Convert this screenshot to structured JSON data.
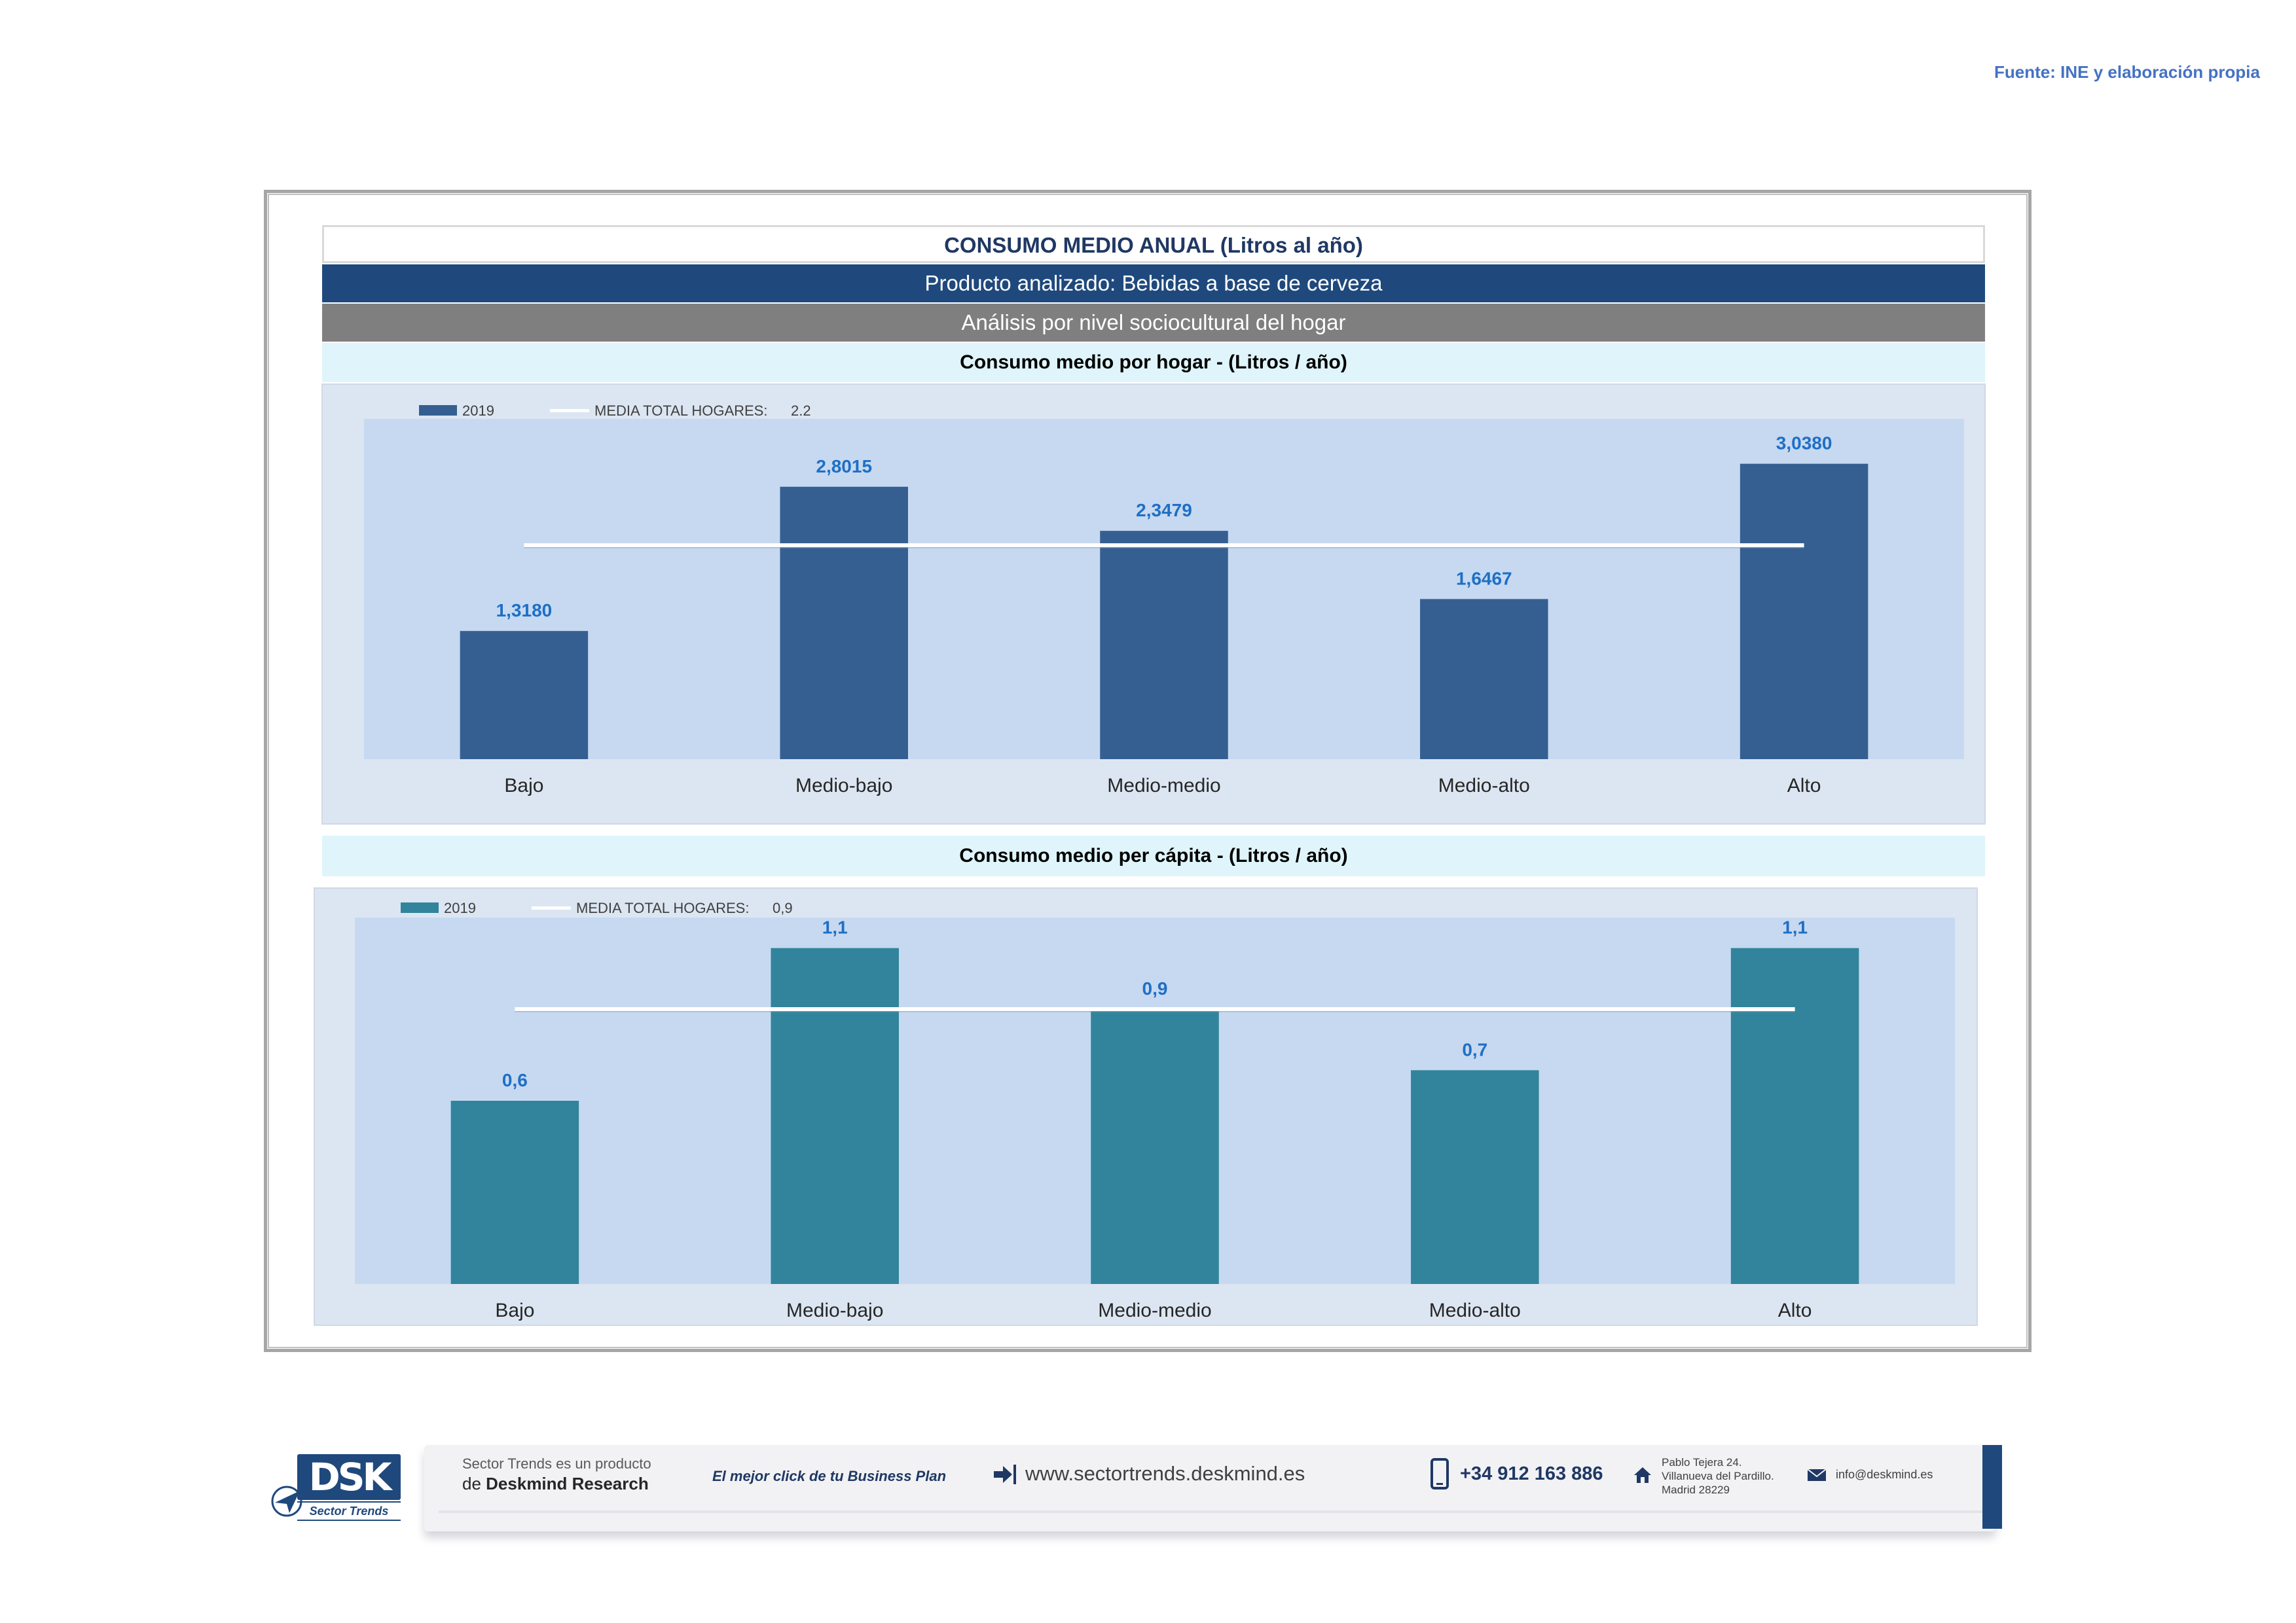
{
  "source": "Fuente: INE y elaboración propia",
  "header": {
    "title": "CONSUMO MEDIO ANUAL (Litros al año)",
    "product": "Producto analizado: Bebidas a base de cerveza",
    "analysis": "Análisis por nivel sociocultural del hogar"
  },
  "colors": {
    "bar_hogar": "#355f91",
    "bar_capita": "#31849b",
    "plot_bg": "#c6d9f1",
    "panel_bg": "#dce6f2",
    "value_label": "#1f6fc5",
    "average_line": "#ffffff"
  },
  "chart_data": [
    {
      "type": "bar",
      "title": "Consumo medio por hogar -  (Litros / año)",
      "categories": [
        "Bajo",
        "Medio-bajo",
        "Medio-medio",
        "Medio-alto",
        "Alto"
      ],
      "series": [
        {
          "name": "2019",
          "values": [
            1.318,
            2.8015,
            2.3479,
            1.6467,
            3.038
          ],
          "labels": [
            "1,3180",
            "2,8015",
            "2,3479",
            "1,6467",
            "3,0380"
          ]
        }
      ],
      "average": {
        "name": "MEDIA TOTAL  HOGARES:",
        "value": 2.2,
        "label": "2.2"
      },
      "ylim": [
        0,
        3.5
      ],
      "grid": false,
      "legend": "top-left"
    },
    {
      "type": "bar",
      "title": "Consumo medio per cápita -  (Litros / año)",
      "categories": [
        "Bajo",
        "Medio-bajo",
        "Medio-medio",
        "Medio-alto",
        "Alto"
      ],
      "series": [
        {
          "name": "2019",
          "values": [
            0.6,
            1.1,
            0.9,
            0.7,
            1.1
          ],
          "labels": [
            "0,6",
            "1,1",
            "0,9",
            "0,7",
            "1,1"
          ]
        }
      ],
      "average": {
        "name": "MEDIA TOTAL  HOGARES:",
        "value": 0.9,
        "label": "0,9"
      },
      "ylim": [
        0,
        1.2
      ],
      "grid": false,
      "legend": "top-left"
    }
  ],
  "footer": {
    "brand_logo": "DSK",
    "brand_sub": "Sector Trends",
    "product_line1": "Sector Trends es un producto",
    "product_line2_prefix": "de",
    "product_line2_brand": "Deskmind Research",
    "slogan": "El mejor click de tu Business Plan",
    "website": "www.sectortrends.deskmind.es",
    "website_icon": "arrow-login-icon",
    "phone": "+34 912 163 886",
    "phone_icon": "mobile-phone-icon",
    "address_line1": "Pablo Tejera 24.",
    "address_line2": "Villanueva del Pardillo.",
    "address_line3": "Madrid 28229",
    "address_icon": "house-icon",
    "email": "info@deskmind.es",
    "email_icon": "envelope-icon"
  }
}
